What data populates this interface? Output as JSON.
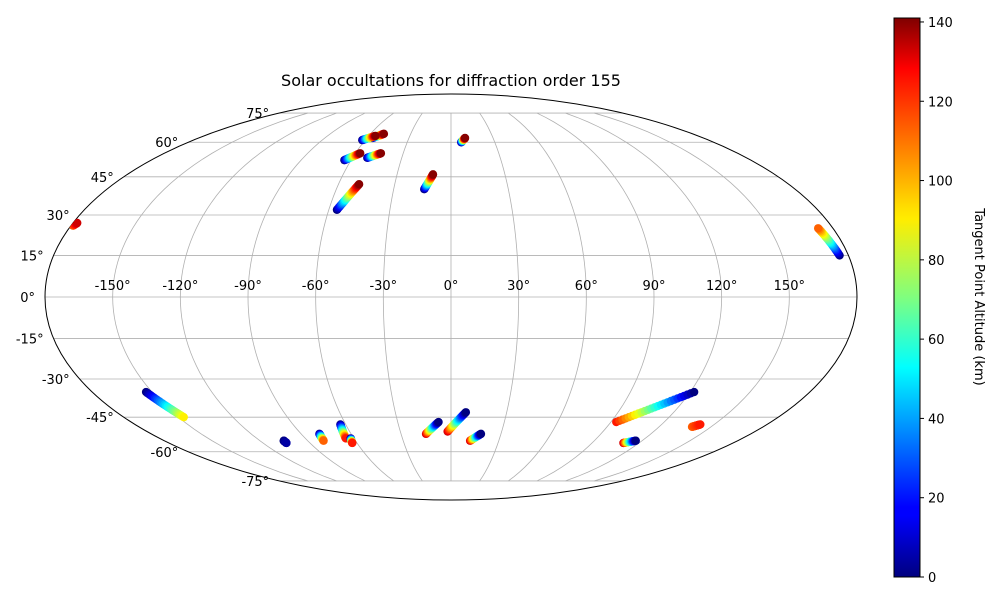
{
  "chart_data": {
    "type": "scatter",
    "projection": "mollweide",
    "title": "Solar occultations for diffraction order 155",
    "grid": true,
    "lon_ticks": [
      "-150°",
      "-120°",
      "-90°",
      "-60°",
      "-30°",
      "0°",
      "30°",
      "60°",
      "90°",
      "120°",
      "150°"
    ],
    "lon_tick_values": [
      -150,
      -120,
      -90,
      -60,
      -30,
      0,
      30,
      60,
      90,
      120,
      150
    ],
    "lat_ticks": [
      "75°",
      "60°",
      "45°",
      "30°",
      "15°",
      "0°",
      "-15°",
      "-30°",
      "-45°",
      "-60°",
      "-75°"
    ],
    "lat_tick_values": [
      75,
      60,
      45,
      30,
      15,
      0,
      -15,
      -30,
      -45,
      -60,
      -75
    ],
    "colorbar": {
      "label": "Tangent Point Altitude (km)",
      "min": 0,
      "max": 141,
      "ticks": [
        "0",
        "20",
        "40",
        "60",
        "80",
        "100",
        "120",
        "140"
      ],
      "tick_values": [
        0,
        20,
        40,
        60,
        80,
        100,
        120,
        140
      ],
      "colormap": "jet",
      "placement": "right"
    },
    "series": [
      {
        "lon0": -179,
        "lat0": 26,
        "alt0": 110,
        "lon1": -178,
        "lat1": 27,
        "alt1": 130
      },
      {
        "lon0": -56,
        "lat0": 62,
        "alt0": 0,
        "lon1": -50,
        "lat1": 64,
        "alt1": 140
      },
      {
        "lon0": -62,
        "lat0": 61,
        "alt0": 0,
        "lon1": -55,
        "lat1": 63,
        "alt1": 140
      },
      {
        "lon0": -64,
        "lat0": 52,
        "alt0": 0,
        "lon1": -57,
        "lat1": 55,
        "alt1": 140
      },
      {
        "lon0": -51,
        "lat0": 53,
        "alt0": 0,
        "lon1": -44,
        "lat1": 55,
        "alt1": 140
      },
      {
        "lon0": -56,
        "lat0": 32,
        "alt0": 0,
        "lon1": -49,
        "lat1": 42,
        "alt1": 140
      },
      {
        "lon0": -14,
        "lat0": 40,
        "alt0": 0,
        "lon1": -10,
        "lat1": 46,
        "alt1": 140
      },
      {
        "lon0": 7,
        "lat0": 60,
        "alt0": 0,
        "lon1": 10,
        "lat1": 62,
        "alt1": 140
      },
      {
        "lon0": 176,
        "lat0": 15,
        "alt0": 0,
        "lon1": 173,
        "lat1": 25,
        "alt1": 110
      },
      {
        "lon0": -153,
        "lat0": -35,
        "alt0": 0,
        "lon1": -147,
        "lat1": -45,
        "alt1": 90
      },
      {
        "lon0": -105,
        "lat0": -55,
        "alt0": 0,
        "lon1": -105,
        "lat1": -56,
        "alt1": 5
      },
      {
        "lon0": -79,
        "lat0": -52,
        "alt0": 0,
        "lon1": -80,
        "lat1": -55,
        "alt1": 110
      },
      {
        "lon0": -63,
        "lat0": -48,
        "alt0": 0,
        "lon1": -65,
        "lat1": -54,
        "alt1": 120
      },
      {
        "lon0": -62,
        "lat0": -54,
        "alt0": 0,
        "lon1": -63,
        "lat1": -56,
        "alt1": 120
      },
      {
        "lon0": -15,
        "lat0": -52,
        "alt0": 130,
        "lon1": -7,
        "lat1": -47,
        "alt1": 0
      },
      {
        "lon0": -2,
        "lat0": -51,
        "alt0": 130,
        "lon1": 8,
        "lat1": -43,
        "alt1": 0
      },
      {
        "lon0": 12,
        "lat0": -55,
        "alt0": 130,
        "lon1": 18,
        "lat1": -52,
        "alt1": 0
      },
      {
        "lon0": 93,
        "lat0": -47,
        "alt0": 120,
        "lon1": 122,
        "lat1": -35,
        "alt1": 0
      },
      {
        "lon0": 110,
        "lat0": -56,
        "alt0": 130,
        "lon1": 116,
        "lat1": -55,
        "alt1": 0
      },
      {
        "lon0": 139,
        "lat0": -49,
        "alt0": 110,
        "lon1": 142,
        "lat1": -48,
        "alt1": 120
      }
    ]
  }
}
